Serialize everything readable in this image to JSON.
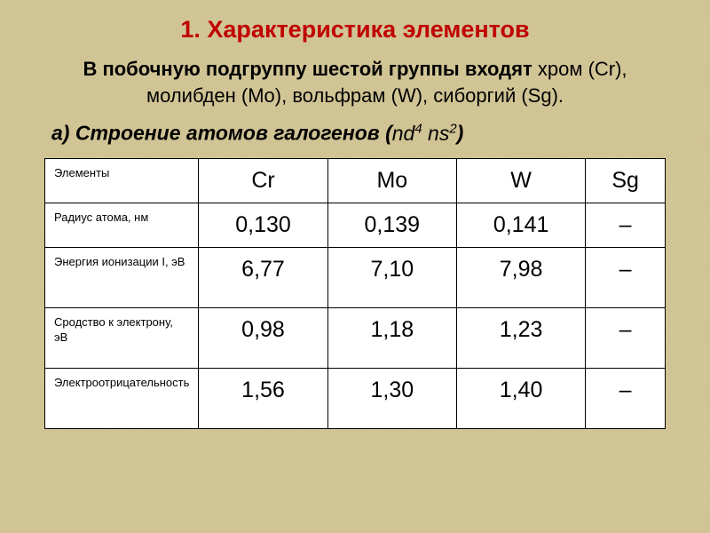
{
  "title": "1. Характеристика элементов",
  "intro_bold": "В побочную подгруппу шестой группы входят",
  "intro_rest": " хром (Cr), молибден (Mo), вольфрам (W), сиборгий (Sg).",
  "subheading_prefix": "а) Строение атомов галогенов (",
  "config_n1": "nd",
  "config_s1": "4",
  "config_n2": " ns",
  "config_s2": "2",
  "subheading_suffix": ")",
  "columns_label": "Элементы",
  "columns": [
    "Cr",
    "Mo",
    "W",
    "Sg"
  ],
  "rows": [
    {
      "label": "Радиус атома, нм",
      "values": [
        "0,130",
        "0,139",
        "0,141",
        "–"
      ]
    },
    {
      "label": "Энергия ионизации I, эВ",
      "values": [
        "6,77",
        "7,10",
        "7,98",
        "–"
      ]
    },
    {
      "label": "Сродство к электрону, эВ",
      "values": [
        "0,98",
        "1,18",
        "1,23",
        "–"
      ]
    },
    {
      "label": "Электроотрицательность",
      "values": [
        "1,56",
        "1,30",
        "1,40",
        "–"
      ]
    }
  ],
  "colors": {
    "title": "#c00000",
    "background": "#d4c89a",
    "text": "#000000",
    "table_bg": "#ffffff",
    "border": "#000000"
  },
  "fonts": {
    "family": "Arial",
    "title_size": 27,
    "intro_size": 22,
    "subheading_size": 23,
    "rowlabel_size": 13,
    "value_size": 25
  }
}
